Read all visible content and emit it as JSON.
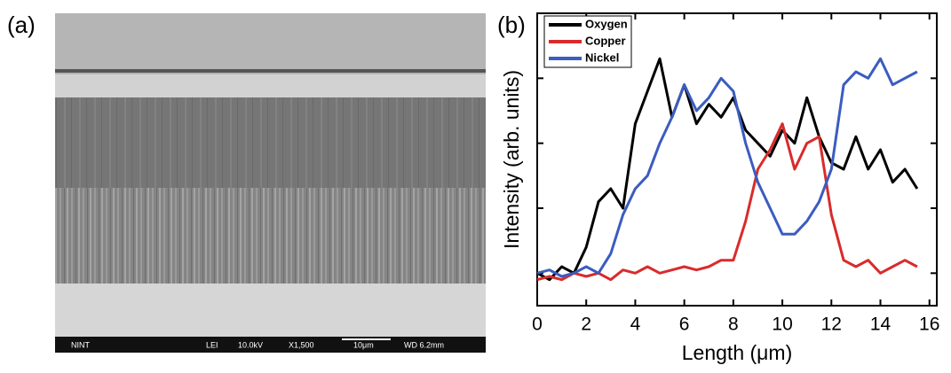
{
  "panel_a": {
    "label": "(a)",
    "info_bar": [
      "NINT",
      "LEI",
      "10.0kV",
      "X1,500",
      "10μm",
      "WD 6.2mm"
    ]
  },
  "panel_b_label": "(b)",
  "chart_data": {
    "type": "line",
    "x_label": "Length (μm)",
    "y_label": "Intensity (arb. units)",
    "x": [
      0,
      0.5,
      1,
      1.5,
      2,
      2.5,
      3,
      3.5,
      4,
      4.5,
      5,
      5.5,
      6,
      6.5,
      7,
      7.5,
      8,
      8.5,
      9,
      9.5,
      10,
      10.5,
      11,
      11.5,
      12,
      12.5,
      13,
      13.5,
      14,
      14.5,
      15,
      15.5
    ],
    "series": [
      {
        "name": "Oxygen",
        "color": "#000000",
        "values": [
          1.0,
          0.9,
          1.1,
          1.0,
          1.4,
          2.1,
          2.3,
          2.0,
          3.3,
          3.8,
          4.3,
          3.4,
          3.9,
          3.3,
          3.6,
          3.4,
          3.7,
          3.2,
          3.0,
          2.8,
          3.2,
          3.0,
          3.7,
          3.1,
          2.7,
          2.6,
          3.1,
          2.6,
          2.9,
          2.4,
          2.6,
          2.3
        ]
      },
      {
        "name": "Copper",
        "color": "#d92b2b",
        "values": [
          0.9,
          0.95,
          0.9,
          1.0,
          0.95,
          1.0,
          0.9,
          1.05,
          1.0,
          1.1,
          1.0,
          1.05,
          1.1,
          1.05,
          1.1,
          1.2,
          1.2,
          1.8,
          2.6,
          2.9,
          3.3,
          2.6,
          3.0,
          3.1,
          1.9,
          1.2,
          1.1,
          1.2,
          1.0,
          1.1,
          1.2,
          1.1
        ]
      },
      {
        "name": "Nickel",
        "color": "#3b5cc0",
        "values": [
          1.0,
          1.05,
          0.95,
          1.0,
          1.1,
          1.0,
          1.3,
          1.9,
          2.3,
          2.5,
          3.0,
          3.4,
          3.9,
          3.5,
          3.7,
          4.0,
          3.8,
          3.0,
          2.4,
          2.0,
          1.6,
          1.6,
          1.8,
          2.1,
          2.6,
          3.9,
          4.1,
          4.0,
          4.3,
          3.9,
          4.0,
          4.1
        ]
      }
    ],
    "xlim": [
      0,
      16.3
    ],
    "xticks": [
      0,
      2,
      4,
      6,
      8,
      10,
      12,
      14,
      16
    ],
    "ylim": [
      0.5,
      5
    ],
    "yticks": [
      1,
      2,
      3,
      4
    ],
    "legend": "top-left",
    "grid": false
  }
}
